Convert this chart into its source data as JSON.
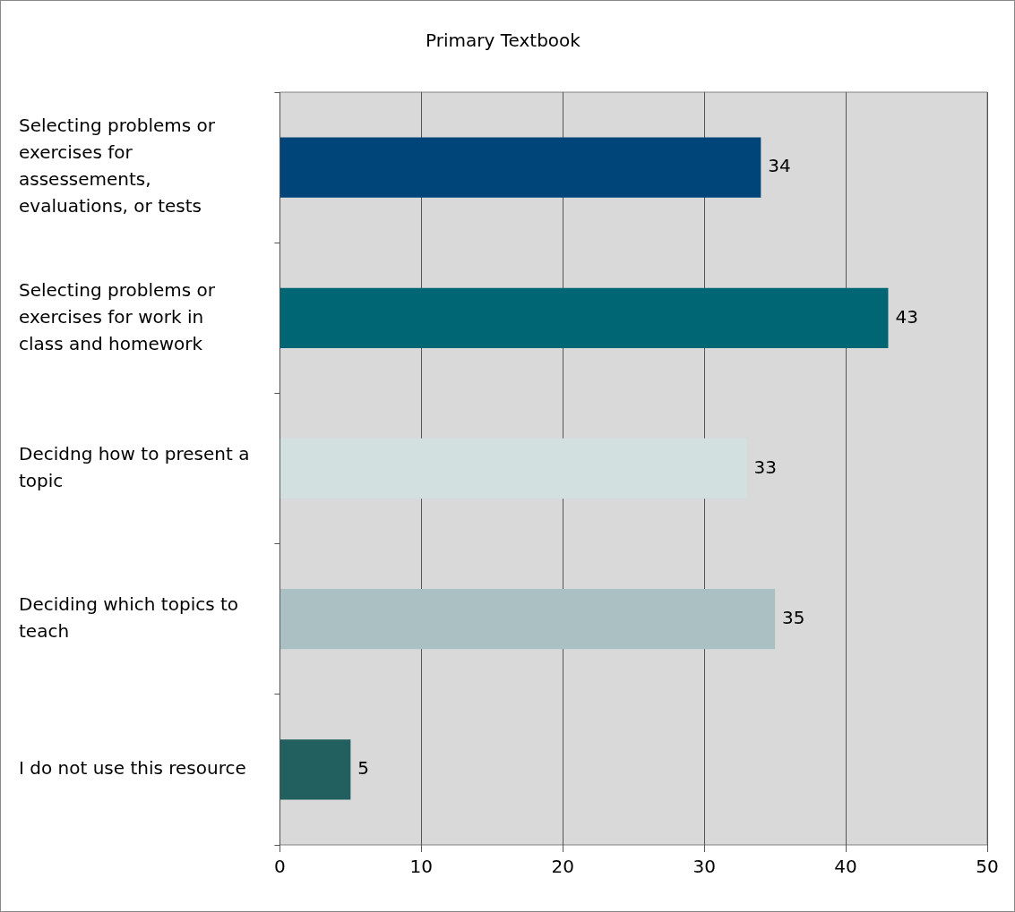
{
  "chart_data": {
    "type": "bar",
    "orientation": "horizontal",
    "title": "Primary Textbook",
    "categories": [
      "Selecting problems or exercises for assessements, evaluations, or tests",
      "Selecting problems or exercises for work in class and homework",
      "Decidng how to present a topic",
      "Deciding which topics to teach",
      "I do not use this resource"
    ],
    "values": [
      34,
      43,
      33,
      35,
      5
    ],
    "colors": [
      "#00457a",
      "#006674",
      "#d3e0e0",
      "#abc0c2",
      "#22605f"
    ],
    "xlim": [
      0,
      50
    ],
    "xticks": [
      0,
      10,
      20,
      30,
      40,
      50
    ],
    "grid": "x",
    "legend": false,
    "data_labels": true
  }
}
